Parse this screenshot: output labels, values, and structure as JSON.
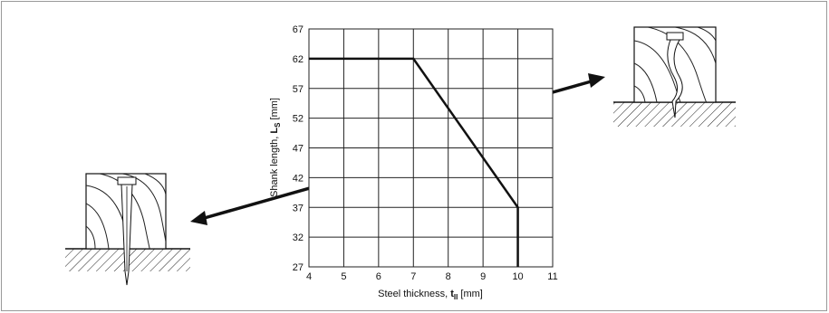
{
  "chart_data": {
    "type": "line",
    "x": [
      4,
      7,
      10,
      10
    ],
    "series": [
      {
        "color": "#111111",
        "values": [
          62,
          62,
          37,
          27
        ]
      }
    ],
    "xlim": [
      4,
      11
    ],
    "ylim": [
      27,
      67
    ],
    "xticks": [
      4,
      5,
      6,
      7,
      8,
      9,
      10,
      11
    ],
    "yticks": [
      27,
      32,
      37,
      42,
      47,
      52,
      57,
      62,
      67
    ],
    "grid": true,
    "xlabel": {
      "text": "Steel thickness,",
      "symbol": "t",
      "subscript": "II",
      "unit": "[mm]"
    },
    "ylabel": {
      "text": "Shank length,",
      "symbol": "L",
      "subscript": "S",
      "unit": "[mm]"
    }
  }
}
